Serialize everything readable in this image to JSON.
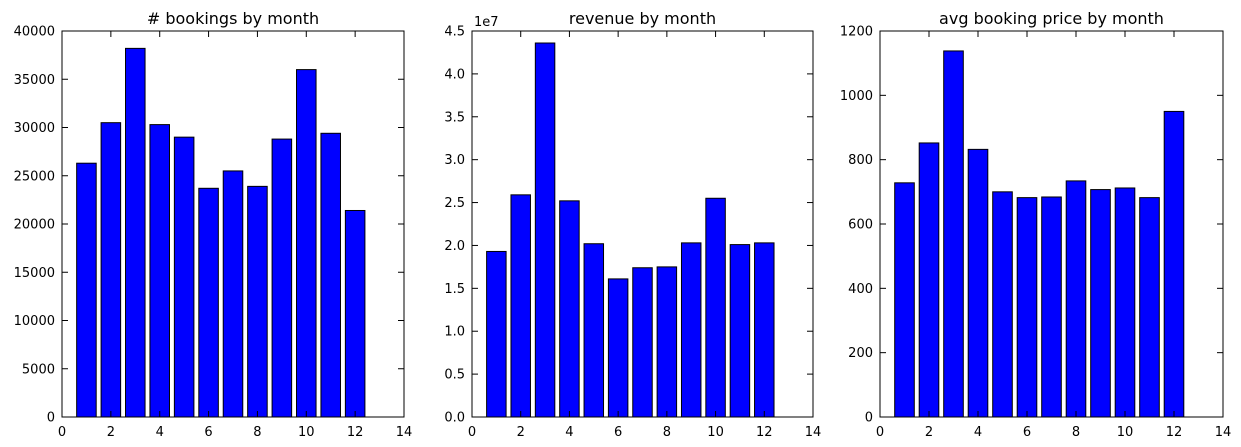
{
  "colors": {
    "bar": "#0000ff",
    "edge": "#000000",
    "background": "#ffffff"
  },
  "chart_data": [
    {
      "type": "bar",
      "title": "# bookings by month",
      "x": [
        1,
        2,
        3,
        4,
        5,
        6,
        7,
        8,
        9,
        10,
        11,
        12
      ],
      "values": [
        26300,
        30500,
        38200,
        30300,
        29000,
        23700,
        25500,
        23900,
        28800,
        36000,
        29400,
        21400
      ],
      "xlim": [
        0,
        14
      ],
      "ylim": [
        0,
        40000
      ],
      "xticks": [
        "0",
        "2",
        "4",
        "6",
        "8",
        "10",
        "12",
        "14"
      ],
      "yticks": [
        "0",
        "5000",
        "10000",
        "15000",
        "20000",
        "25000",
        "30000",
        "35000",
        "40000"
      ],
      "y_offset_label": "",
      "grid": false
    },
    {
      "type": "bar",
      "title": "revenue by month",
      "x": [
        1,
        2,
        3,
        4,
        5,
        6,
        7,
        8,
        9,
        10,
        11,
        12
      ],
      "values": [
        19300000,
        25900000,
        43600000,
        25200000,
        20200000,
        16100000,
        17400000,
        17500000,
        20300000,
        25500000,
        20100000,
        20300000
      ],
      "xlim": [
        0,
        14
      ],
      "ylim": [
        0,
        45000000
      ],
      "xticks": [
        "0",
        "2",
        "4",
        "6",
        "8",
        "10",
        "12",
        "14"
      ],
      "yticks": [
        "0.0",
        "0.5",
        "1.0",
        "1.5",
        "2.0",
        "2.5",
        "3.0",
        "3.5",
        "4.0",
        "4.5"
      ],
      "y_offset_label": "1e7",
      "grid": false
    },
    {
      "type": "bar",
      "title": "avg booking price by month",
      "x": [
        1,
        2,
        3,
        4,
        5,
        6,
        7,
        8,
        9,
        10,
        11,
        12
      ],
      "values": [
        728,
        852,
        1138,
        832,
        700,
        682,
        684,
        734,
        707,
        712,
        682,
        950
      ],
      "xlim": [
        0,
        14
      ],
      "ylim": [
        0,
        1200
      ],
      "xticks": [
        "0",
        "2",
        "4",
        "6",
        "8",
        "10",
        "12",
        "14"
      ],
      "yticks": [
        "0",
        "200",
        "400",
        "600",
        "800",
        "1000",
        "1200"
      ],
      "y_offset_label": "",
      "grid": false
    }
  ]
}
